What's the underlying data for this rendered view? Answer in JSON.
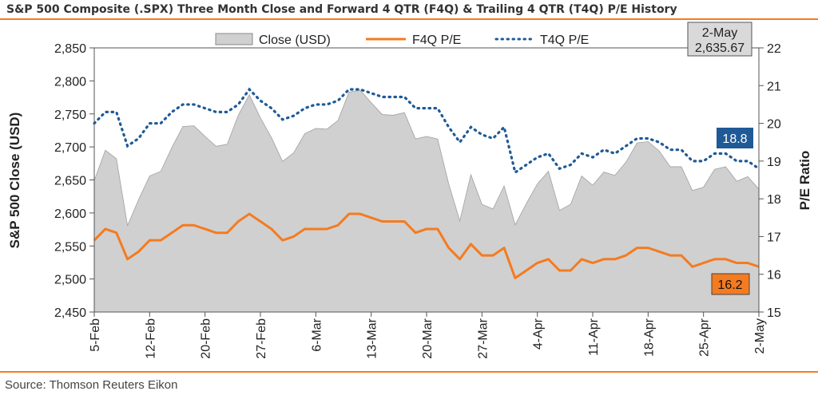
{
  "chart_data": {
    "type": "area",
    "title": "S&P 500 Composite (.SPX) Three Month Close and Forward 4 QTR (F4Q) & Trailing 4 QTR (T4Q) P/E History",
    "source": "Source: Thomson Reuters Eikon",
    "ylabel_left": "S&P 500 Close (USD)",
    "ylabel_right": "P/E Ratio",
    "ylim_left": [
      2450,
      2850
    ],
    "ylim_right": [
      15,
      22
    ],
    "yticks_left": [
      "2,450",
      "2,500",
      "2,550",
      "2,600",
      "2,650",
      "2,700",
      "2,750",
      "2,800",
      "2,850"
    ],
    "yticks_right": [
      "15",
      "16",
      "17",
      "18",
      "19",
      "20",
      "21",
      "22"
    ],
    "xtick_labels": [
      "5-Feb",
      "12-Feb",
      "20-Feb",
      "27-Feb",
      "6-Mar",
      "13-Mar",
      "20-Mar",
      "27-Mar",
      "4-Apr",
      "11-Apr",
      "18-Apr",
      "25-Apr",
      "2-May"
    ],
    "xtick_indices": [
      0,
      5,
      10,
      15,
      20,
      25,
      30,
      35,
      40,
      45,
      50,
      55,
      60
    ],
    "grid": false,
    "legend_position": "top",
    "series": [
      {
        "name": "Close (USD)",
        "axis": "left",
        "style": "area",
        "color": "#d0d0d0",
        "values": [
          2649,
          2695,
          2682,
          2581,
          2620,
          2656,
          2663,
          2699,
          2731,
          2732,
          2716,
          2701,
          2704,
          2748,
          2779,
          2744,
          2714,
          2678,
          2691,
          2720,
          2728,
          2727,
          2740,
          2783,
          2786,
          2767,
          2749,
          2748,
          2752,
          2712,
          2716,
          2712,
          2644,
          2588,
          2658,
          2613,
          2606,
          2641,
          2582,
          2614,
          2644,
          2663,
          2604,
          2613,
          2656,
          2642,
          2662,
          2657,
          2677,
          2706,
          2708,
          2694,
          2670,
          2670,
          2634,
          2639,
          2666,
          2670,
          2648,
          2655,
          2636
        ]
      },
      {
        "name": "F4Q P/E",
        "axis": "right",
        "style": "line",
        "color": "#f47b20",
        "values": [
          16.9,
          17.2,
          17.1,
          16.4,
          16.6,
          16.9,
          16.9,
          17.1,
          17.3,
          17.3,
          17.2,
          17.1,
          17.1,
          17.4,
          17.6,
          17.4,
          17.2,
          16.9,
          17.0,
          17.2,
          17.2,
          17.2,
          17.3,
          17.6,
          17.6,
          17.5,
          17.4,
          17.4,
          17.4,
          17.1,
          17.2,
          17.2,
          16.7,
          16.4,
          16.8,
          16.5,
          16.5,
          16.7,
          15.9,
          16.1,
          16.3,
          16.4,
          16.1,
          16.1,
          16.4,
          16.3,
          16.4,
          16.4,
          16.5,
          16.7,
          16.7,
          16.6,
          16.5,
          16.5,
          16.2,
          16.3,
          16.4,
          16.4,
          16.3,
          16.3,
          16.2
        ]
      },
      {
        "name": "T4Q P/E",
        "axis": "right",
        "style": "dotted",
        "color": "#1f5a96",
        "values": [
          20.0,
          20.3,
          20.3,
          19.4,
          19.6,
          20.0,
          20.0,
          20.3,
          20.5,
          20.5,
          20.4,
          20.3,
          20.3,
          20.5,
          20.9,
          20.6,
          20.4,
          20.1,
          20.2,
          20.4,
          20.5,
          20.5,
          20.6,
          20.9,
          20.9,
          20.8,
          20.7,
          20.7,
          20.7,
          20.4,
          20.4,
          20.4,
          19.9,
          19.5,
          19.9,
          19.7,
          19.6,
          19.9,
          18.7,
          18.9,
          19.1,
          19.2,
          18.8,
          18.9,
          19.2,
          19.1,
          19.3,
          19.2,
          19.4,
          19.6,
          19.6,
          19.5,
          19.3,
          19.3,
          19.0,
          19.0,
          19.2,
          19.2,
          19.0,
          19.0,
          18.8
        ]
      }
    ],
    "annotations": {
      "last_date": "2-May",
      "last_close": "2,635.67",
      "last_t4q": "18.8",
      "last_f4q": "16.2"
    }
  },
  "colors": {
    "accent_orange": "#f47b20",
    "t4q_blue": "#1f5a96",
    "area_fill": "#d0d0d0",
    "callout_box": "#d9d9d9"
  }
}
